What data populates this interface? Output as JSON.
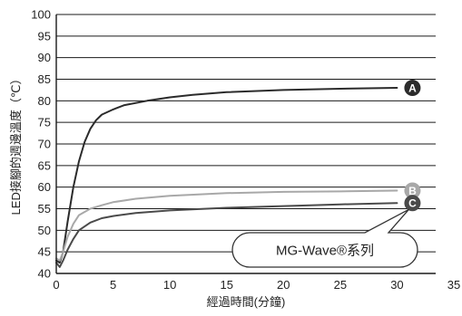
{
  "chart_data": {
    "type": "line",
    "xlabel": "經過時間(分鐘)",
    "ylabel": "LED接腳的週邊溫度（℃）",
    "xlim": [
      0,
      35
    ],
    "ylim": [
      40,
      100
    ],
    "x_ticks": [
      "0",
      "5",
      "10",
      "15",
      "20",
      "25",
      "30",
      "35"
    ],
    "y_ticks": [
      "40",
      "45",
      "50",
      "55",
      "60",
      "65",
      "70",
      "75",
      "80",
      "85",
      "90",
      "95",
      "100"
    ],
    "grid": "horizontal",
    "series": [
      {
        "name": "A",
        "color": "#2b2b2b",
        "points": [
          [
            0,
            43
          ],
          [
            0.3,
            42.5
          ],
          [
            0.6,
            45
          ],
          [
            1,
            52
          ],
          [
            1.5,
            60
          ],
          [
            2,
            66
          ],
          [
            2.5,
            70.5
          ],
          [
            3,
            73.5
          ],
          [
            3.5,
            75.5
          ],
          [
            4,
            76.8
          ],
          [
            5,
            78
          ],
          [
            6,
            79
          ],
          [
            8,
            80
          ],
          [
            10,
            80.8
          ],
          [
            12,
            81.4
          ],
          [
            15,
            82
          ],
          [
            20,
            82.5
          ],
          [
            25,
            82.8
          ],
          [
            30,
            83
          ]
        ]
      },
      {
        "name": "B",
        "color": "#a8a8a8",
        "points": [
          [
            0,
            43.5
          ],
          [
            0.3,
            43
          ],
          [
            0.6,
            45
          ],
          [
            1,
            48.5
          ],
          [
            1.5,
            51.5
          ],
          [
            2,
            53.5
          ],
          [
            3,
            55
          ],
          [
            4,
            55.8
          ],
          [
            5,
            56.5
          ],
          [
            7,
            57.3
          ],
          [
            10,
            58
          ],
          [
            15,
            58.6
          ],
          [
            20,
            58.9
          ],
          [
            25,
            59
          ],
          [
            30,
            59.2
          ]
        ]
      },
      {
        "name": "C",
        "color": "#4a4a4a",
        "points": [
          [
            0,
            42.5
          ],
          [
            0.3,
            41.5
          ],
          [
            0.6,
            43
          ],
          [
            1,
            45.5
          ],
          [
            1.5,
            48
          ],
          [
            2,
            50
          ],
          [
            3,
            51.8
          ],
          [
            4,
            52.8
          ],
          [
            5,
            53.3
          ],
          [
            7,
            54
          ],
          [
            10,
            54.6
          ],
          [
            15,
            55.2
          ],
          [
            20,
            55.6
          ],
          [
            25,
            56
          ],
          [
            30,
            56.3
          ]
        ]
      }
    ],
    "annotation": {
      "text": "MG-Wave®系列",
      "points_to": "C"
    }
  }
}
